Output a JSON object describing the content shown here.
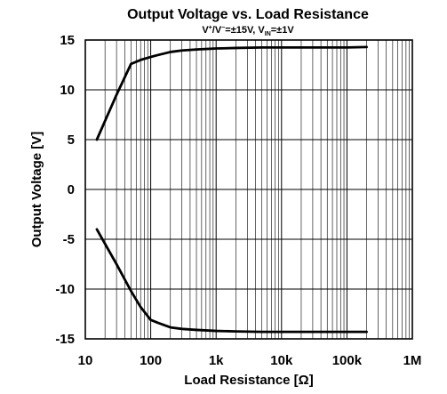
{
  "chart_data": {
    "type": "line",
    "title": "Output Voltage vs. Load Resistance",
    "subtitle": {
      "v1": "V",
      "sup1": "+",
      "sep": "/V",
      "sup2": "−",
      "mid": "=±15V, V",
      "sub": "IN",
      "end": "=±1V"
    },
    "xlabel": "Load Resistance [Ω]",
    "ylabel": "Output Voltage [V]",
    "x_scale": "log",
    "xlim": [
      10,
      1000000
    ],
    "ylim": [
      -15,
      15
    ],
    "x_ticks": [
      {
        "value": 10,
        "label": "10"
      },
      {
        "value": 100,
        "label": "100"
      },
      {
        "value": 1000,
        "label": "1k"
      },
      {
        "value": 10000,
        "label": "10k"
      },
      {
        "value": 100000,
        "label": "100k"
      },
      {
        "value": 1000000,
        "label": "1M"
      }
    ],
    "y_ticks": [
      {
        "value": 15,
        "label": "15"
      },
      {
        "value": 10,
        "label": "10"
      },
      {
        "value": 5,
        "label": "5"
      },
      {
        "value": 0,
        "label": "0"
      },
      {
        "value": -5,
        "label": "-5"
      },
      {
        "value": -10,
        "label": "-10"
      },
      {
        "value": -15,
        "label": "-15"
      }
    ],
    "grid": true,
    "series": [
      {
        "x": [
          15,
          30,
          50,
          70,
          100,
          130,
          200,
          300,
          500,
          1000,
          2000,
          5000,
          10000,
          20000,
          50000,
          100000,
          200000
        ],
        "y": [
          5.0,
          9.5,
          12.6,
          13.0,
          13.3,
          13.5,
          13.8,
          13.95,
          14.05,
          14.15,
          14.2,
          14.25,
          14.25,
          14.25,
          14.25,
          14.25,
          14.3
        ]
      },
      {
        "x": [
          15,
          30,
          50,
          70,
          100,
          130,
          200,
          300,
          500,
          1000,
          2000,
          5000,
          10000,
          20000,
          50000,
          100000,
          200000
        ],
        "y": [
          -4.0,
          -7.5,
          -10.2,
          -11.8,
          -13.1,
          -13.4,
          -13.85,
          -14.0,
          -14.1,
          -14.2,
          -14.25,
          -14.3,
          -14.3,
          -14.3,
          -14.3,
          -14.3,
          -14.3
        ]
      }
    ]
  }
}
